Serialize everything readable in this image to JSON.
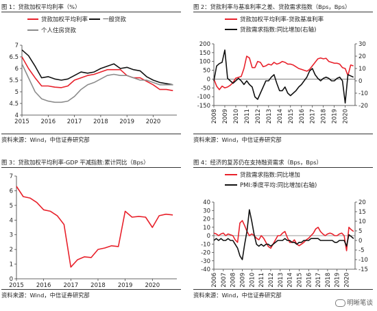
{
  "panels": [
    {
      "title": "图 1：贷款加权平均利率（%）",
      "source": "资料来源：Wind，中信证券研究部"
    },
    {
      "title": "图 2：贷款利率与基准利率之差、贷款需求指数（Bps，Bps）",
      "source": "资料来源：Wind，中信证券研究部"
    },
    {
      "title": "图 3：贷款加权平均利率-GDP 平减指数:累计同比（Bps）",
      "source": "资料来源：Wind，中信证券研究部"
    },
    {
      "title": "图 4：经济的复苏仍在支持融资需求（Bps，Bps）",
      "source": "资料来源：Wind，中信证券研究部"
    }
  ],
  "watermark": "明晰笔谈",
  "colors": {
    "red": "#e8202a",
    "black": "#111111",
    "gray": "#8c8c8c"
  },
  "chart_data": [
    {
      "type": "line",
      "title": "图 1：贷款加权平均利率（%）",
      "xlim": [
        2015,
        2020.9
      ],
      "ylim": [
        4,
        7
      ],
      "x_ticks": [
        "2015",
        "2016",
        "2017",
        "2018",
        "2019",
        "2020"
      ],
      "y_ticks": [
        "4",
        "4.5",
        "5",
        "5.5",
        "6",
        "6.5",
        "7"
      ],
      "legend": "top",
      "series": [
        {
          "name": "贷款加权平均利率",
          "color": "#e8202a",
          "x": [
            2015.0,
            2015.25,
            2015.5,
            2015.75,
            2016.0,
            2016.25,
            2016.5,
            2016.75,
            2017.0,
            2017.25,
            2017.5,
            2017.75,
            2018.0,
            2018.25,
            2018.5,
            2018.75,
            2019.0,
            2019.25,
            2019.5,
            2019.75,
            2020.0,
            2020.25,
            2020.5,
            2020.75
          ],
          "y": [
            6.5,
            6.0,
            5.6,
            5.25,
            5.25,
            5.2,
            5.18,
            5.25,
            5.5,
            5.6,
            5.7,
            5.75,
            5.85,
            5.95,
            5.95,
            5.95,
            5.7,
            5.6,
            5.6,
            5.45,
            5.3,
            5.1,
            5.1,
            5.05
          ]
        },
        {
          "name": "一般贷款",
          "color": "#111111",
          "x": [
            2015.0,
            2015.25,
            2015.5,
            2015.75,
            2016.0,
            2016.25,
            2016.5,
            2016.75,
            2017.0,
            2017.25,
            2017.5,
            2017.75,
            2018.0,
            2018.25,
            2018.5,
            2018.75,
            2019.0,
            2019.25,
            2019.5,
            2019.75,
            2020.0,
            2020.25,
            2020.5,
            2020.75
          ],
          "y": [
            6.8,
            6.55,
            6.1,
            5.6,
            5.65,
            5.55,
            5.5,
            5.55,
            5.7,
            5.85,
            5.8,
            5.85,
            6.0,
            6.1,
            6.2,
            6.0,
            6.05,
            5.95,
            5.9,
            5.65,
            5.5,
            5.4,
            5.35,
            5.3
          ]
        },
        {
          "name": "个人住房贷款",
          "color": "#8c8c8c",
          "x": [
            2015.0,
            2015.25,
            2015.5,
            2015.75,
            2016.0,
            2016.25,
            2016.5,
            2016.75,
            2017.0,
            2017.25,
            2017.5,
            2017.75,
            2018.0,
            2018.25,
            2018.5,
            2018.75,
            2019.0,
            2019.25,
            2019.5,
            2019.75,
            2020.0,
            2020.25,
            2020.5,
            2020.75
          ],
          "y": [
            6.2,
            5.6,
            5.0,
            4.7,
            4.6,
            4.55,
            4.55,
            4.6,
            4.8,
            5.1,
            5.3,
            5.4,
            5.55,
            5.7,
            5.75,
            5.7,
            5.7,
            5.6,
            5.5,
            5.5,
            5.4,
            5.3,
            5.3,
            5.3
          ]
        }
      ]
    },
    {
      "type": "line",
      "title": "图 2：贷款利率与基准利率之差、贷款需求指数（Bps，Bps）",
      "xlim": [
        2008,
        2020.9
      ],
      "ylim_left": [
        -150,
        200
      ],
      "ylim_right": [
        -20,
        30
      ],
      "x_ticks": [
        "2008",
        "2009",
        "2010",
        "2011",
        "2012",
        "2013",
        "2014",
        "2015",
        "2016",
        "2017",
        "2018",
        "2019",
        "2020"
      ],
      "y_ticks_left": [
        "-150",
        "-100",
        "-50",
        "0",
        "50",
        "100",
        "150",
        "200"
      ],
      "y_ticks_right": [
        "-20",
        "-10",
        "0",
        "10",
        "20",
        "30"
      ],
      "legend": "top",
      "series": [
        {
          "name": "贷款加权平均利率-贷款基准利率",
          "color": "#e8202a",
          "axis": "left",
          "x": [
            2008.0,
            2008.25,
            2008.5,
            2008.75,
            2009.0,
            2009.25,
            2009.5,
            2009.75,
            2010.0,
            2010.25,
            2010.5,
            2010.75,
            2011.0,
            2011.25,
            2011.5,
            2011.75,
            2012.0,
            2012.25,
            2012.5,
            2012.75,
            2013.0,
            2013.25,
            2013.5,
            2013.75,
            2014.0,
            2014.25,
            2014.5,
            2014.75,
            2015.0,
            2015.25,
            2015.5,
            2015.75,
            2016.0,
            2016.25,
            2016.5,
            2016.75,
            2017.0,
            2017.25,
            2017.5,
            2017.75,
            2018.0,
            2018.25,
            2018.5,
            2018.75,
            2019.0,
            2019.25,
            2019.5,
            2019.75,
            2020.0,
            2020.25,
            2020.5,
            2020.75
          ],
          "y": [
            0,
            -40,
            -60,
            -40,
            -50,
            -45,
            -35,
            -20,
            5,
            10,
            15,
            60,
            130,
            120,
            65,
            65,
            100,
            95,
            70,
            75,
            85,
            80,
            95,
            85,
            90,
            100,
            95,
            85,
            85,
            80,
            70,
            60,
            55,
            50,
            45,
            55,
            75,
            95,
            115,
            120,
            115,
            118,
            100,
            95,
            90,
            90,
            85,
            65,
            60,
            20,
            80,
            75
          ]
        },
        {
          "name": "贷款需求指数:同比增加(右轴)",
          "color": "#111111",
          "axis": "right",
          "x": [
            2008.0,
            2008.25,
            2008.5,
            2008.75,
            2009.0,
            2009.25,
            2009.5,
            2009.75,
            2010.0,
            2010.25,
            2010.5,
            2010.75,
            2011.0,
            2011.25,
            2011.5,
            2011.75,
            2012.0,
            2012.25,
            2012.5,
            2012.75,
            2013.0,
            2013.25,
            2013.5,
            2013.75,
            2014.0,
            2014.25,
            2014.5,
            2014.75,
            2015.0,
            2015.25,
            2015.5,
            2015.75,
            2016.0,
            2016.25,
            2016.5,
            2016.75,
            2017.0,
            2017.25,
            2017.5,
            2017.75,
            2018.0,
            2018.25,
            2018.5,
            2018.75,
            2019.0,
            2019.25,
            2019.5,
            2019.75,
            2020.0,
            2020.25,
            2020.5,
            2020.75
          ],
          "y": [
            0,
            12,
            14,
            15,
            25,
            2,
            0,
            -2,
            0,
            2,
            0,
            -3,
            0,
            -3,
            -5,
            -13,
            -15,
            -10,
            -5,
            0,
            0,
            3,
            5,
            -2,
            -8,
            -8,
            -5,
            -10,
            -12,
            -10,
            -8,
            -5,
            -3,
            0,
            3,
            8,
            10,
            5,
            2,
            0,
            2,
            3,
            2,
            0,
            0,
            2,
            3,
            0,
            -18,
            5,
            4,
            3
          ]
        }
      ]
    },
    {
      "type": "line",
      "title": "图 3：贷款加权平均利率-GDP 平减指数:累计同比（Bps）",
      "xlim": [
        2015,
        2020.9
      ],
      "ylim": [
        0,
        7
      ],
      "x_ticks": [
        "2015",
        "2016",
        "2017",
        "2018",
        "2019",
        "2020"
      ],
      "y_ticks": [
        "0",
        "1",
        "2",
        "3",
        "4",
        "5",
        "6",
        "7"
      ],
      "series": [
        {
          "color": "#e8202a",
          "x": [
            2015.0,
            2015.25,
            2015.5,
            2015.75,
            2016.0,
            2016.25,
            2016.5,
            2016.75,
            2017.0,
            2017.25,
            2017.5,
            2017.75,
            2018.0,
            2018.25,
            2018.5,
            2018.75,
            2019.0,
            2019.25,
            2019.5,
            2019.75,
            2020.0,
            2020.25,
            2020.5,
            2020.75
          ],
          "y": [
            6.3,
            5.6,
            5.5,
            5.2,
            4.7,
            4.6,
            4.3,
            3.7,
            0.8,
            1.3,
            1.5,
            1.45,
            2.0,
            2.1,
            2.25,
            2.2,
            4.6,
            4.2,
            4.25,
            4.2,
            3.5,
            4.3,
            4.4,
            4.35
          ]
        }
      ]
    },
    {
      "type": "line",
      "title": "图 4：经济的复苏仍在支持融资需求（Bps，Bps）",
      "xlim": [
        2006,
        2020.9
      ],
      "ylim_left": [
        -40,
        40
      ],
      "ylim_right": [
        -15,
        20
      ],
      "x_ticks": [
        "2006",
        "2007",
        "2008",
        "2009",
        "2010",
        "2011",
        "2012",
        "2013",
        "2014",
        "2015",
        "2016",
        "2017",
        "2018",
        "2019",
        "2020"
      ],
      "y_ticks_left": [
        "-40",
        "-30",
        "-20",
        "-10",
        "0",
        "10",
        "20",
        "30",
        "40"
      ],
      "y_ticks_right": [
        "-15",
        "-10",
        "-5",
        "0",
        "5",
        "10",
        "15",
        "20"
      ],
      "legend": "top",
      "series": [
        {
          "name": "贷款需求指数:同比增加",
          "color": "#e8202a",
          "axis": "left",
          "x": [
            2006.0,
            2006.25,
            2006.5,
            2006.75,
            2007.0,
            2007.25,
            2007.5,
            2007.75,
            2008.0,
            2008.25,
            2008.5,
            2008.75,
            2009.0,
            2009.25,
            2009.5,
            2009.75,
            2010.0,
            2010.25,
            2010.5,
            2010.75,
            2011.0,
            2011.25,
            2011.5,
            2011.75,
            2012.0,
            2012.25,
            2012.5,
            2012.75,
            2013.0,
            2013.25,
            2013.5,
            2013.75,
            2014.0,
            2014.25,
            2014.5,
            2014.75,
            2015.0,
            2015.25,
            2015.5,
            2015.75,
            2016.0,
            2016.25,
            2016.5,
            2016.75,
            2017.0,
            2017.25,
            2017.5,
            2017.75,
            2018.0,
            2018.25,
            2018.5,
            2018.75,
            2019.0,
            2019.25,
            2019.5,
            2019.75,
            2020.0,
            2020.25,
            2020.5,
            2020.75
          ],
          "y": [
            3,
            2,
            0,
            2,
            3,
            0,
            2,
            1,
            0,
            -5,
            -8,
            15,
            18,
            12,
            5,
            0,
            2,
            0,
            -3,
            -5,
            0,
            -3,
            -8,
            -13,
            -15,
            -10,
            -5,
            0,
            0,
            3,
            5,
            -2,
            -8,
            -8,
            -5,
            -10,
            -12,
            -10,
            -8,
            -5,
            -3,
            0,
            3,
            8,
            10,
            5,
            2,
            0,
            2,
            3,
            2,
            0,
            0,
            2,
            3,
            0,
            -18,
            10,
            7,
            5
          ]
        },
        {
          "name": "PMI:季度平均:同比增加(右轴)",
          "color": "#111111",
          "axis": "right",
          "x": [
            2006.0,
            2006.25,
            2006.5,
            2006.75,
            2007.0,
            2007.25,
            2007.5,
            2007.75,
            2008.0,
            2008.25,
            2008.5,
            2008.75,
            2009.0,
            2009.25,
            2009.5,
            2009.75,
            2010.0,
            2010.25,
            2010.5,
            2010.75,
            2011.0,
            2011.25,
            2011.5,
            2011.75,
            2012.0,
            2012.25,
            2012.5,
            2012.75,
            2013.0,
            2013.25,
            2013.5,
            2013.75,
            2014.0,
            2014.25,
            2014.5,
            2014.75,
            2015.0,
            2015.25,
            2015.5,
            2015.75,
            2016.0,
            2016.25,
            2016.5,
            2016.75,
            2017.0,
            2017.25,
            2017.5,
            2017.75,
            2018.0,
            2018.25,
            2018.5,
            2018.75,
            2019.0,
            2019.25,
            2019.5,
            2019.75,
            2020.0,
            2020.25,
            2020.5,
            2020.75
          ],
          "y": [
            0,
            1,
            0,
            1,
            0,
            0,
            1,
            0,
            0,
            -2,
            -4,
            -8,
            -10,
            -2,
            5,
            16,
            10,
            3,
            -2,
            -3,
            -2,
            -3,
            -2,
            -2,
            -3,
            -2,
            -1,
            0,
            0,
            0,
            1,
            0,
            0,
            -1,
            -1,
            -2,
            -1,
            -1,
            0,
            0,
            0,
            1,
            1,
            1,
            1,
            0,
            0,
            0,
            0,
            0,
            0,
            -1,
            -1,
            0,
            0,
            0,
            -3,
            3,
            2,
            1
          ]
        }
      ]
    }
  ]
}
